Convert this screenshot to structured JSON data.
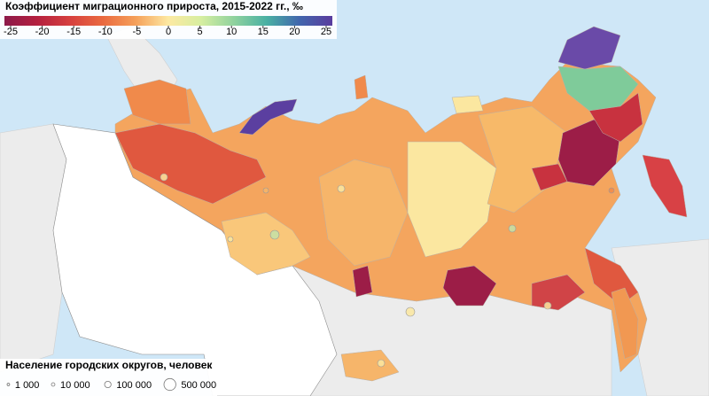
{
  "title": "Коэффициент миграционного прироста, 2015-2022 гг., ‰",
  "colorbar": {
    "lim": [
      -25,
      25
    ],
    "ticks": [
      -25,
      -20,
      -15,
      -10,
      -5,
      0,
      5,
      10,
      15,
      20,
      25
    ],
    "colors": [
      "#8c1a4a",
      "#b4203f",
      "#d6403f",
      "#ea6a40",
      "#f5a05a",
      "#fde9a2",
      "#d6eea0",
      "#8fd29e",
      "#49b0a3",
      "#4166ad",
      "#5a3c9e"
    ]
  },
  "size_legend": {
    "title": "Население городских округов, человек",
    "values": [
      {
        "value": 1000,
        "label": "1 000"
      },
      {
        "value": 10000,
        "label": "10 000"
      },
      {
        "value": 100000,
        "label": "100 000"
      },
      {
        "value": 500000,
        "label": "500 000"
      }
    ]
  }
}
